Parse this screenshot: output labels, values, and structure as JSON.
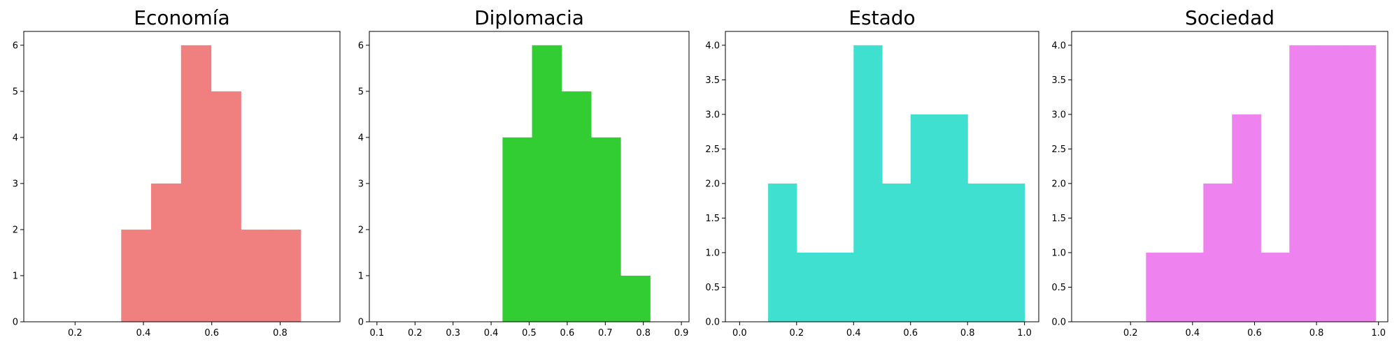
{
  "chart_data": [
    {
      "type": "bar",
      "title": "Economía",
      "color": "#f08080",
      "xlim": [
        0.05,
        0.975
      ],
      "ylim": [
        0,
        6.3
      ],
      "xticks": [
        0.2,
        0.4,
        0.6,
        0.8
      ],
      "xtick_labels": [
        "0.2",
        "0.4",
        "0.6",
        "0.8"
      ],
      "yticks": [
        0,
        1,
        2,
        3,
        4,
        5,
        6
      ],
      "ytick_labels": [
        "0",
        "1",
        "2",
        "3",
        "4",
        "5",
        "6"
      ],
      "bins": [
        {
          "x0": 0.335,
          "x1": 0.4225,
          "count": 2
        },
        {
          "x0": 0.4225,
          "x1": 0.51,
          "count": 3
        },
        {
          "x0": 0.51,
          "x1": 0.5975,
          "count": 6
        },
        {
          "x0": 0.5975,
          "x1": 0.685,
          "count": 5
        },
        {
          "x0": 0.685,
          "x1": 0.7725,
          "count": 2
        },
        {
          "x0": 0.7725,
          "x1": 0.86,
          "count": 2
        }
      ]
    },
    {
      "type": "bar",
      "title": "Diplomacia",
      "color": "#32cd32",
      "xlim": [
        0.08,
        0.92
      ],
      "ylim": [
        0,
        6.3
      ],
      "xticks": [
        0.1,
        0.2,
        0.3,
        0.4,
        0.5,
        0.6,
        0.7,
        0.8,
        0.9
      ],
      "xtick_labels": [
        "0.1",
        "0.2",
        "0.3",
        "0.4",
        "0.5",
        "0.6",
        "0.7",
        "0.8",
        "0.9"
      ],
      "yticks": [
        0,
        1,
        2,
        3,
        4,
        5,
        6
      ],
      "ytick_labels": [
        "0",
        "1",
        "2",
        "3",
        "4",
        "5",
        "6"
      ],
      "bins": [
        {
          "x0": 0.43,
          "x1": 0.5075,
          "count": 4
        },
        {
          "x0": 0.5075,
          "x1": 0.585,
          "count": 6
        },
        {
          "x0": 0.585,
          "x1": 0.6625,
          "count": 5
        },
        {
          "x0": 0.6625,
          "x1": 0.74,
          "count": 4
        },
        {
          "x0": 0.74,
          "x1": 0.8175,
          "count": 1
        }
      ]
    },
    {
      "type": "bar",
      "title": "Estado",
      "color": "#40e0d0",
      "xlim": [
        -0.05,
        1.05
      ],
      "ylim": [
        0,
        4.2
      ],
      "xticks": [
        0.0,
        0.2,
        0.4,
        0.6,
        0.8,
        1.0
      ],
      "xtick_labels": [
        "0.0",
        "0.2",
        "0.4",
        "0.6",
        "0.8",
        "1.0"
      ],
      "yticks": [
        0,
        0.5,
        1,
        1.5,
        2,
        2.5,
        3,
        3.5,
        4
      ],
      "ytick_labels": [
        "0.0",
        "0.5",
        "1.0",
        "1.5",
        "2.0",
        "2.5",
        "3.0",
        "3.5",
        "4.0"
      ],
      "bins": [
        {
          "x0": 0.1,
          "x1": 0.2,
          "count": 2
        },
        {
          "x0": 0.2,
          "x1": 0.3,
          "count": 1
        },
        {
          "x0": 0.3,
          "x1": 0.4,
          "count": 1
        },
        {
          "x0": 0.4,
          "x1": 0.5,
          "count": 4
        },
        {
          "x0": 0.5,
          "x1": 0.6,
          "count": 2
        },
        {
          "x0": 0.6,
          "x1": 0.7,
          "count": 3
        },
        {
          "x0": 0.7,
          "x1": 0.8,
          "count": 3
        },
        {
          "x0": 0.8,
          "x1": 0.9,
          "count": 2
        },
        {
          "x0": 0.9,
          "x1": 1.0,
          "count": 2
        }
      ]
    },
    {
      "type": "bar",
      "title": "Sociedad",
      "color": "#ee82ee",
      "xlim": [
        0.01,
        1.03
      ],
      "ylim": [
        0,
        4.2
      ],
      "xticks": [
        0.2,
        0.4,
        0.6,
        0.8,
        1.0
      ],
      "xtick_labels": [
        "0.2",
        "0.4",
        "0.6",
        "0.8",
        "1.0"
      ],
      "yticks": [
        0,
        0.5,
        1,
        1.5,
        2,
        2.5,
        3,
        3.5,
        4
      ],
      "ytick_labels": [
        "0.0",
        "0.5",
        "1.0",
        "1.5",
        "2.0",
        "2.5",
        "3.0",
        "3.5",
        "4.0"
      ],
      "bins": [
        {
          "x0": 0.25,
          "x1": 0.3425,
          "count": 1
        },
        {
          "x0": 0.3425,
          "x1": 0.435,
          "count": 1
        },
        {
          "x0": 0.435,
          "x1": 0.5275,
          "count": 2
        },
        {
          "x0": 0.5275,
          "x1": 0.62,
          "count": 3
        },
        {
          "x0": 0.62,
          "x1": 0.7125,
          "count": 1
        },
        {
          "x0": 0.7125,
          "x1": 0.805,
          "count": 4
        },
        {
          "x0": 0.805,
          "x1": 0.8975,
          "count": 4
        },
        {
          "x0": 0.8975,
          "x1": 0.99,
          "count": 4
        }
      ]
    }
  ]
}
